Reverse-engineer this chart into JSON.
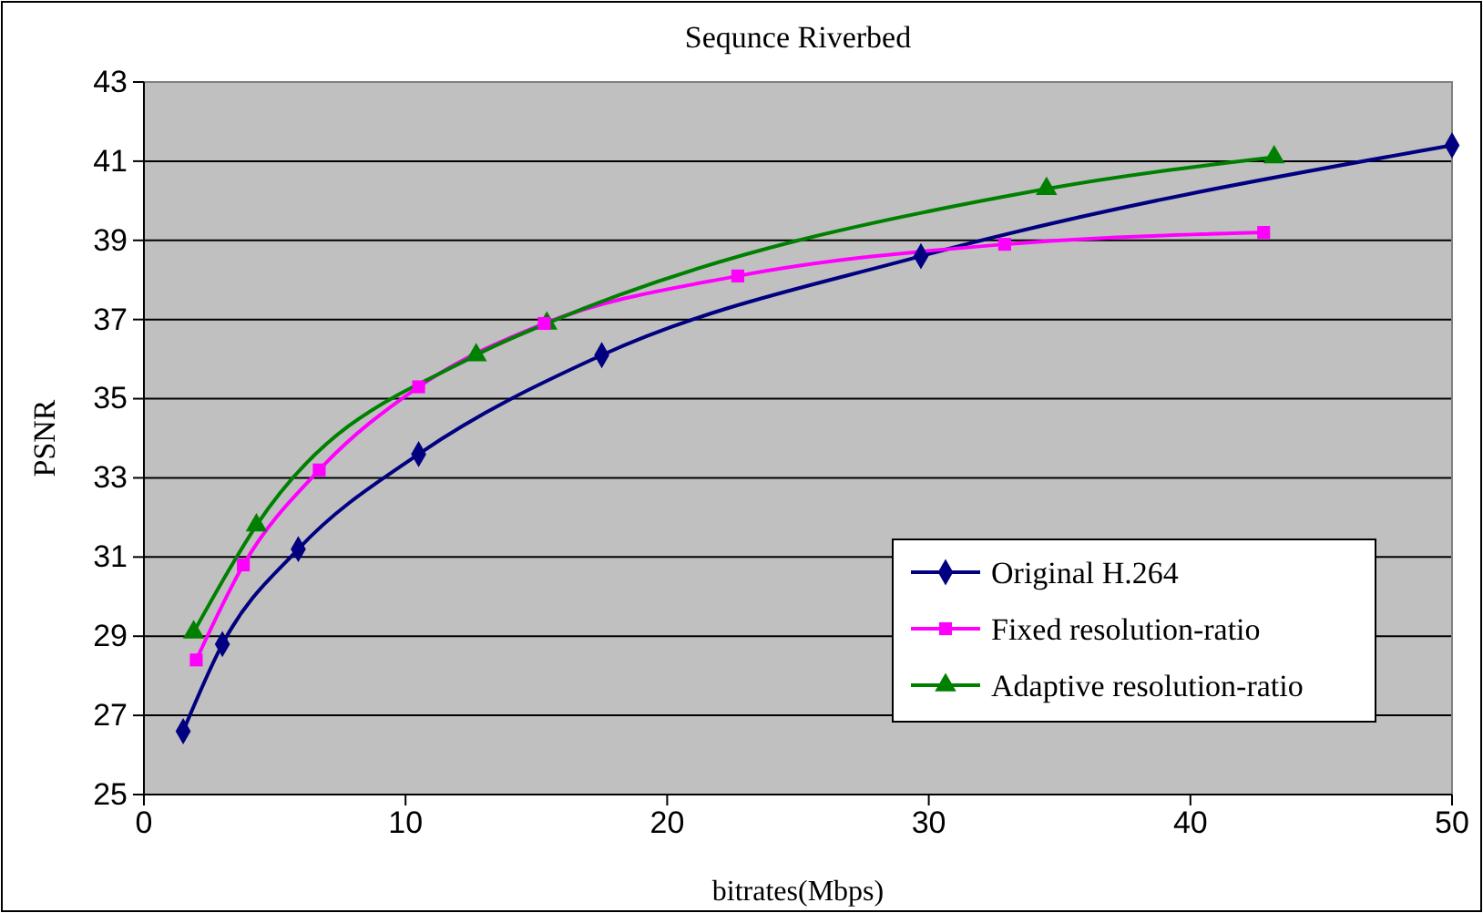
{
  "chart_data": {
    "type": "line",
    "title": "Sequnce Riverbed",
    "xlabel": "bitrates(Mbps)",
    "ylabel": "PSNR",
    "xlim": [
      0,
      50
    ],
    "xticks": [
      0,
      10,
      20,
      30,
      40,
      50
    ],
    "ylim": [
      25,
      43
    ],
    "yticks": [
      25,
      27,
      29,
      31,
      33,
      35,
      37,
      39,
      41,
      43
    ],
    "grid": "y",
    "legend": "bottom right",
    "series": [
      {
        "name": "Original H.264",
        "color": "#000080",
        "marker": "diamond",
        "x": [
          1.5,
          3.0,
          5.9,
          10.5,
          17.5,
          29.7,
          50
        ],
        "values": [
          26.6,
          28.8,
          31.2,
          33.6,
          36.1,
          38.6,
          41.4
        ]
      },
      {
        "name": "Fixed resolution-ratio",
        "color": "#ff00ff",
        "marker": "square",
        "x": [
          2.0,
          3.8,
          6.7,
          10.5,
          15.3,
          22.7,
          32.9,
          42.8
        ],
        "values": [
          28.4,
          30.8,
          33.2,
          35.3,
          36.9,
          38.1,
          38.9,
          39.2
        ]
      },
      {
        "name": "Adaptive resolution-ratio",
        "color": "#008000",
        "marker": "triangle",
        "x": [
          1.9,
          4.3,
          12.7,
          15.4,
          34.5,
          43.2
        ],
        "values": [
          29.1,
          31.8,
          36.1,
          36.9,
          40.3,
          41.1
        ]
      }
    ]
  }
}
